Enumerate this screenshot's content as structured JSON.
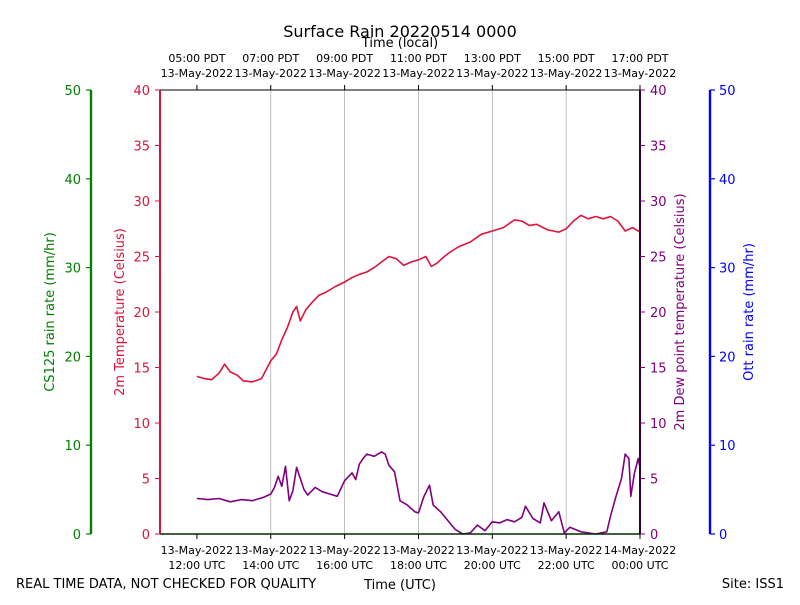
{
  "chart_data": {
    "type": "line",
    "title": "Surface Rain 20220514 0000",
    "top_axis_label": "Time (local)",
    "xlabel": "Time (UTC)",
    "footer_left": "REAL TIME DATA, NOT CHECKED FOR QUALITY",
    "footer_right": "Site: ISS1",
    "x_range_hours_utc": [
      11,
      24
    ],
    "gridlines_at": [
      14,
      16,
      18,
      20,
      22
    ],
    "utc_ticks": [
      {
        "hour": 12,
        "date": "13-May-2022",
        "time": "12:00 UTC"
      },
      {
        "hour": 14,
        "date": "13-May-2022",
        "time": "14:00 UTC"
      },
      {
        "hour": 16,
        "date": "13-May-2022",
        "time": "16:00 UTC"
      },
      {
        "hour": 18,
        "date": "13-May-2022",
        "time": "18:00 UTC"
      },
      {
        "hour": 20,
        "date": "13-May-2022",
        "time": "20:00 UTC"
      },
      {
        "hour": 22,
        "date": "13-May-2022",
        "time": "22:00 UTC"
      },
      {
        "hour": 24,
        "date": "14-May-2022",
        "time": "00:00 UTC"
      }
    ],
    "local_ticks": [
      {
        "hour": 12,
        "time": "05:00 PDT",
        "date": "13-May-2022"
      },
      {
        "hour": 14,
        "time": "07:00 PDT",
        "date": "13-May-2022"
      },
      {
        "hour": 16,
        "time": "09:00 PDT",
        "date": "13-May-2022"
      },
      {
        "hour": 18,
        "time": "11:00 PDT",
        "date": "13-May-2022"
      },
      {
        "hour": 20,
        "time": "13:00 PDT",
        "date": "13-May-2022"
      },
      {
        "hour": 22,
        "time": "15:00 PDT",
        "date": "13-May-2022"
      },
      {
        "hour": 24,
        "time": "17:00 PDT",
        "date": "13-May-2022"
      }
    ],
    "axes": {
      "cs125": {
        "label": "CS125 rain rate (mm/hr)",
        "range": [
          0,
          50
        ],
        "ticks": [
          0,
          10,
          20,
          30,
          40,
          50
        ],
        "color": "#008000"
      },
      "temp": {
        "label": "2m Temperature (Celsius)",
        "range": [
          0,
          40
        ],
        "ticks": [
          0,
          5,
          10,
          15,
          20,
          25,
          30,
          35,
          40
        ],
        "color": "#dc143c"
      },
      "dew": {
        "label": "2m Dew point temperature (Celsius)",
        "range": [
          0,
          40
        ],
        "ticks": [
          0,
          5,
          10,
          15,
          20,
          25,
          30,
          35,
          40
        ],
        "color": "#800080"
      },
      "ott": {
        "label": "Ott rain rate (mm/hr)",
        "range": [
          0,
          50
        ],
        "ticks": [
          0,
          10,
          20,
          30,
          40,
          50
        ],
        "color": "#0000ff"
      }
    },
    "series": [
      {
        "name": "2m Temperature",
        "axis": "temp",
        "color": "#dc143c",
        "points": [
          [
            12.0,
            14.2
          ],
          [
            12.2,
            14.0
          ],
          [
            12.4,
            13.9
          ],
          [
            12.6,
            14.5
          ],
          [
            12.75,
            15.3
          ],
          [
            12.9,
            14.6
          ],
          [
            13.1,
            14.3
          ],
          [
            13.25,
            13.8
          ],
          [
            13.5,
            13.7
          ],
          [
            13.75,
            14.0
          ],
          [
            14.0,
            15.6
          ],
          [
            14.15,
            16.2
          ],
          [
            14.3,
            17.5
          ],
          [
            14.45,
            18.6
          ],
          [
            14.6,
            20.0
          ],
          [
            14.7,
            20.5
          ],
          [
            14.8,
            19.2
          ],
          [
            14.95,
            20.2
          ],
          [
            15.1,
            20.8
          ],
          [
            15.3,
            21.5
          ],
          [
            15.5,
            21.8
          ],
          [
            15.75,
            22.3
          ],
          [
            16.0,
            22.7
          ],
          [
            16.2,
            23.1
          ],
          [
            16.4,
            23.4
          ],
          [
            16.6,
            23.6
          ],
          [
            16.8,
            24.0
          ],
          [
            17.0,
            24.5
          ],
          [
            17.2,
            25.0
          ],
          [
            17.4,
            24.8
          ],
          [
            17.6,
            24.2
          ],
          [
            17.8,
            24.5
          ],
          [
            18.0,
            24.7
          ],
          [
            18.2,
            25.0
          ],
          [
            18.35,
            24.1
          ],
          [
            18.5,
            24.4
          ],
          [
            18.7,
            25.0
          ],
          [
            18.9,
            25.5
          ],
          [
            19.1,
            25.9
          ],
          [
            19.4,
            26.3
          ],
          [
            19.7,
            27.0
          ],
          [
            20.0,
            27.3
          ],
          [
            20.3,
            27.6
          ],
          [
            20.6,
            28.3
          ],
          [
            20.8,
            28.2
          ],
          [
            21.0,
            27.8
          ],
          [
            21.2,
            27.9
          ],
          [
            21.5,
            27.4
          ],
          [
            21.8,
            27.2
          ],
          [
            22.0,
            27.5
          ],
          [
            22.2,
            28.2
          ],
          [
            22.4,
            28.7
          ],
          [
            22.6,
            28.4
          ],
          [
            22.8,
            28.6
          ],
          [
            23.0,
            28.4
          ],
          [
            23.2,
            28.6
          ],
          [
            23.4,
            28.2
          ],
          [
            23.6,
            27.3
          ],
          [
            23.8,
            27.6
          ],
          [
            24.0,
            27.2
          ]
        ]
      },
      {
        "name": "2m Dew point temperature",
        "axis": "dew",
        "color": "#800080",
        "points": [
          [
            12.0,
            3.2
          ],
          [
            12.3,
            3.1
          ],
          [
            12.6,
            3.2
          ],
          [
            12.9,
            2.9
          ],
          [
            13.2,
            3.1
          ],
          [
            13.5,
            3.0
          ],
          [
            13.8,
            3.3
          ],
          [
            14.0,
            3.6
          ],
          [
            14.1,
            4.2
          ],
          [
            14.2,
            5.2
          ],
          [
            14.3,
            4.3
          ],
          [
            14.4,
            6.1
          ],
          [
            14.5,
            3.0
          ],
          [
            14.6,
            3.9
          ],
          [
            14.7,
            6.0
          ],
          [
            14.8,
            5.0
          ],
          [
            14.9,
            4.0
          ],
          [
            15.0,
            3.5
          ],
          [
            15.2,
            4.2
          ],
          [
            15.4,
            3.8
          ],
          [
            15.6,
            3.6
          ],
          [
            15.8,
            3.4
          ],
          [
            16.0,
            4.8
          ],
          [
            16.2,
            5.5
          ],
          [
            16.3,
            4.9
          ],
          [
            16.4,
            6.3
          ],
          [
            16.5,
            6.8
          ],
          [
            16.6,
            7.2
          ],
          [
            16.8,
            7.0
          ],
          [
            17.0,
            7.4
          ],
          [
            17.1,
            7.2
          ],
          [
            17.2,
            6.2
          ],
          [
            17.35,
            5.6
          ],
          [
            17.5,
            3.0
          ],
          [
            17.7,
            2.6
          ],
          [
            17.9,
            2.0
          ],
          [
            18.0,
            1.9
          ],
          [
            18.15,
            3.4
          ],
          [
            18.3,
            4.4
          ],
          [
            18.4,
            2.6
          ],
          [
            18.6,
            2.0
          ],
          [
            18.8,
            1.2
          ],
          [
            19.0,
            0.4
          ],
          [
            19.2,
            0.0
          ],
          [
            19.4,
            0.1
          ],
          [
            19.6,
            0.8
          ],
          [
            19.8,
            0.3
          ],
          [
            20.0,
            1.1
          ],
          [
            20.2,
            1.0
          ],
          [
            20.4,
            1.3
          ],
          [
            20.6,
            1.1
          ],
          [
            20.8,
            1.5
          ],
          [
            20.9,
            2.5
          ],
          [
            21.1,
            1.4
          ],
          [
            21.3,
            1.0
          ],
          [
            21.4,
            2.8
          ],
          [
            21.6,
            1.2
          ],
          [
            21.8,
            2.0
          ],
          [
            21.95,
            0.1
          ],
          [
            22.1,
            0.6
          ],
          [
            22.4,
            0.2
          ],
          [
            22.8,
            0.0
          ],
          [
            23.1,
            0.2
          ],
          [
            23.2,
            1.6
          ],
          [
            23.35,
            3.4
          ],
          [
            23.5,
            5.0
          ],
          [
            23.6,
            7.2
          ],
          [
            23.7,
            6.8
          ],
          [
            23.75,
            3.4
          ],
          [
            23.85,
            5.5
          ],
          [
            23.95,
            6.8
          ],
          [
            24.0,
            6.0
          ]
        ]
      },
      {
        "name": "CS125 rain rate",
        "axis": "cs125",
        "color": "#008000",
        "points": [
          [
            11.0,
            0
          ],
          [
            24.0,
            0
          ]
        ]
      }
    ]
  }
}
